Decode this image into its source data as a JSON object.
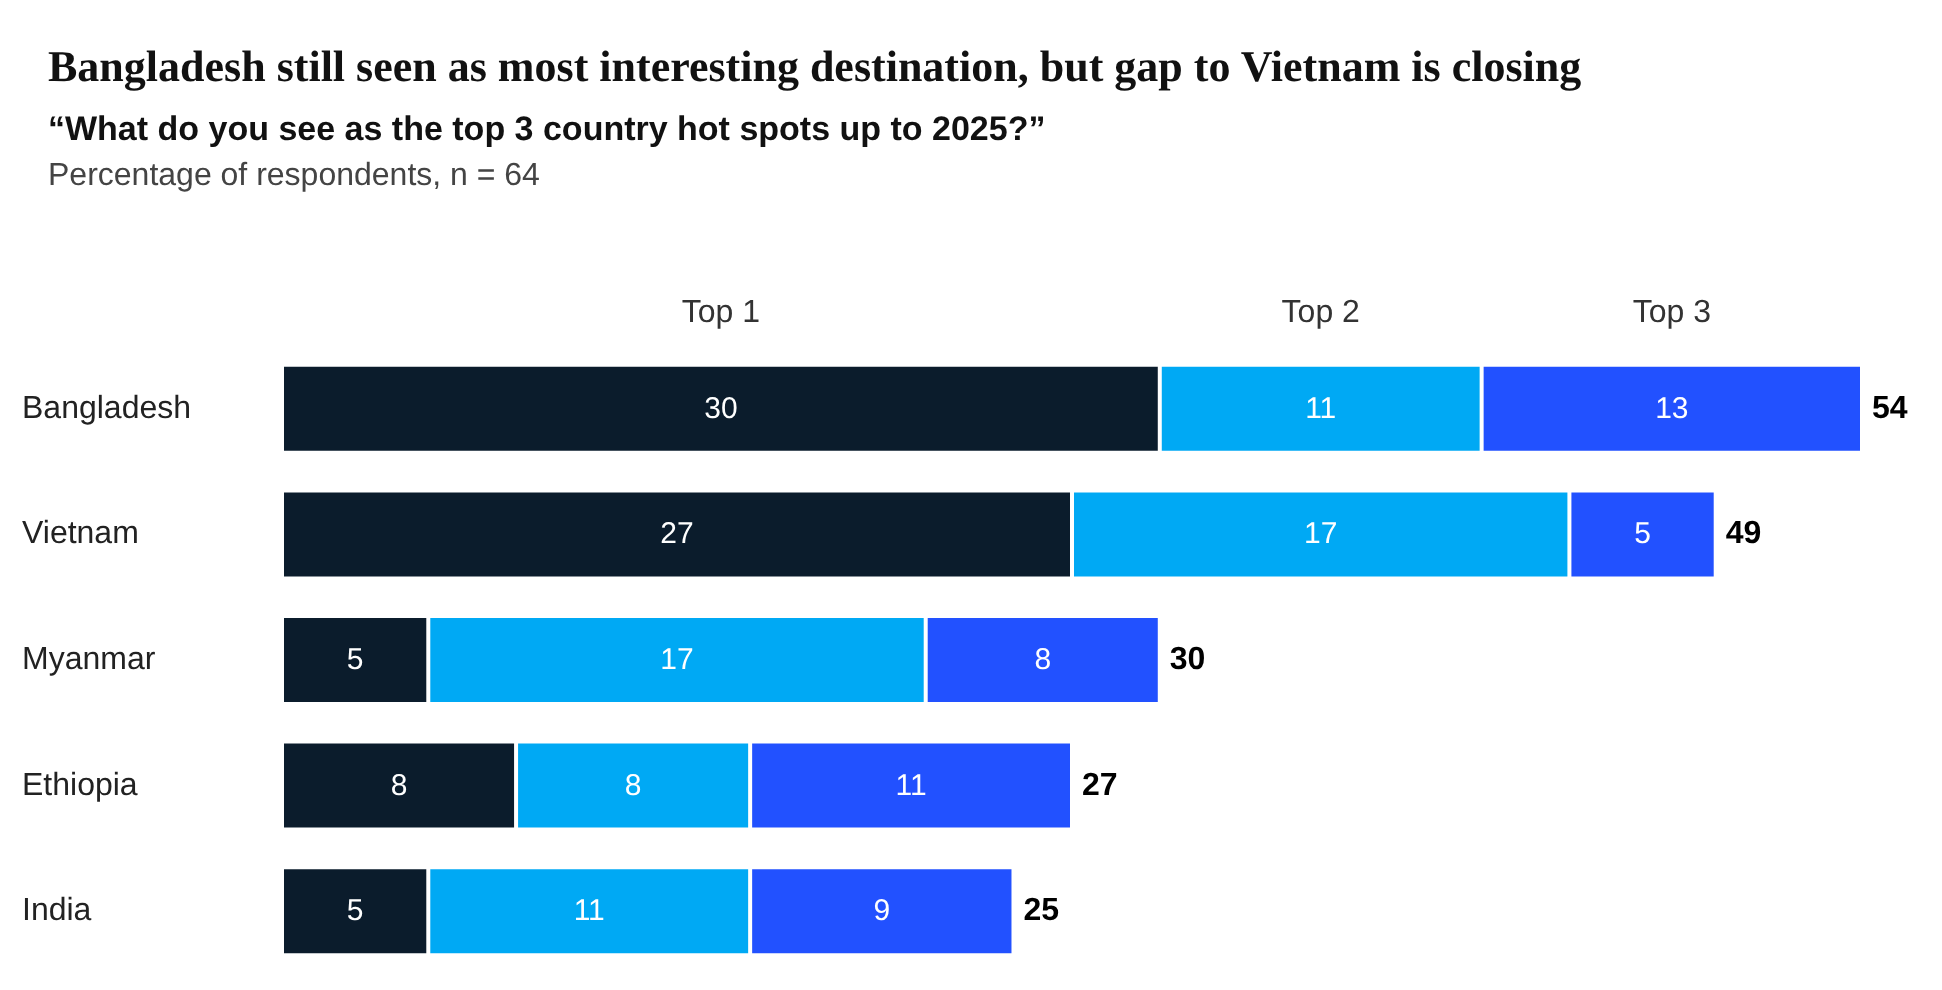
{
  "chart_data": {
    "type": "bar",
    "orientation": "horizontal",
    "stacked": true,
    "title": "Bangladesh still seen as most interesting destination, but gap to Vietnam is closing",
    "subtitle": "“What do you see as the top 3 country hot spots up to 2025?”",
    "annotations": [
      "Percentage of respondents, n = 64"
    ],
    "categories": [
      "Bangladesh",
      "Vietnam",
      "Myanmar",
      "Ethiopia",
      "India"
    ],
    "series": [
      {
        "name": "Top 1",
        "color": "#0b1c2c",
        "values": [
          30,
          27,
          5,
          8,
          5
        ]
      },
      {
        "name": "Top 2",
        "color": "#00a9f4",
        "values": [
          11,
          17,
          17,
          8,
          11
        ]
      },
      {
        "name": "Top 3",
        "color": "#2251ff",
        "values": [
          13,
          5,
          8,
          11,
          9
        ]
      }
    ],
    "totals": [
      "54",
      "49",
      "30",
      "27",
      "25"
    ],
    "data_labels": true,
    "tick_labels": "y",
    "legend": false
  }
}
